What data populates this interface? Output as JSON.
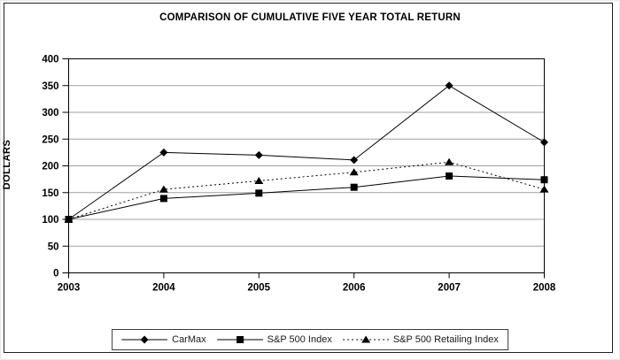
{
  "chart_data": {
    "type": "line",
    "title": "COMPARISON OF CUMULATIVE FIVE YEAR TOTAL RETURN",
    "ylabel": "DOLLARS",
    "xlabel": "",
    "categories": [
      "2003",
      "2004",
      "2005",
      "2006",
      "2007",
      "2008"
    ],
    "y_ticks": [
      0,
      50,
      100,
      150,
      200,
      250,
      300,
      350,
      400
    ],
    "ylim": [
      0,
      400
    ],
    "grid": true,
    "legend_position": "bottom",
    "series": [
      {
        "name": "CarMax",
        "marker": "diamond",
        "line": "solid",
        "color": "#000000",
        "values": [
          100,
          225,
          220,
          211,
          350,
          244
        ]
      },
      {
        "name": "S&P 500 Index",
        "marker": "square",
        "line": "solid",
        "color": "#000000",
        "values": [
          100,
          139,
          149,
          160,
          181,
          174
        ]
      },
      {
        "name": "S&P 500 Retailing Index",
        "marker": "triangle",
        "line": "dotted",
        "color": "#000000",
        "values": [
          100,
          156,
          172,
          188,
          207,
          156
        ]
      }
    ]
  },
  "colors": {
    "grid": "#a0a0a0",
    "axis": "#000000",
    "background": "#ffffff",
    "frame_border": "#1f1f1f"
  }
}
